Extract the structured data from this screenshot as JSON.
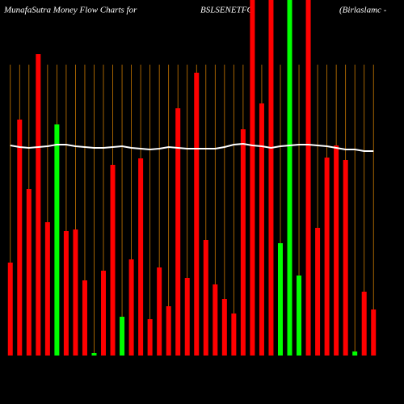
{
  "chart_data": {
    "type": "bar",
    "title": "MunafaSutra  Money Flow  Charts for",
    "subtitle": "BSLSENETFG",
    "annotation": "(Birlaslamc -",
    "categories": [
      null,
      null,
      null,
      null,
      null,
      null,
      null,
      null,
      null,
      null,
      null,
      null,
      null,
      null,
      null,
      null,
      null,
      null,
      null,
      null,
      null,
      null,
      null,
      null,
      null,
      null,
      null,
      null,
      null,
      null,
      null,
      null,
      null,
      null,
      null,
      null,
      null,
      null,
      null,
      null
    ],
    "values": [
      115,
      292,
      206,
      373,
      165,
      286,
      154,
      156,
      93,
      3,
      105,
      236,
      48,
      119,
      244,
      45,
      109,
      61,
      306,
      96,
      350,
      143,
      88,
      70,
      52,
      280,
      440,
      312,
      440,
      139,
      440,
      99,
      440,
      158,
      245,
      260,
      242,
      5,
      79,
      57
    ],
    "colors": [
      "#ff0000",
      "#ff0000",
      "#ff0000",
      "#ff0000",
      "#ff0000",
      "#00ff00",
      "#ff0000",
      "#ff0000",
      "#ff0000",
      "#00ff00",
      "#ff0000",
      "#ff0000",
      "#00ff00",
      "#ff0000",
      "#ff0000",
      "#ff0000",
      "#ff0000",
      "#ff0000",
      "#ff0000",
      "#ff0000",
      "#ff0000",
      "#ff0000",
      "#ff0000",
      "#ff0000",
      "#ff0000",
      "#ff0000",
      "#ff0000",
      "#ff0000",
      "#ff0000",
      "#00ff00",
      "#00ff00",
      "#00ff00",
      "#ff0000",
      "#ff0000",
      "#ff0000",
      "#ff0000",
      "#ff0000",
      "#00ff00",
      "#ff0000",
      "#ff0000"
    ],
    "line": {
      "color": "#ffffff",
      "values": [
        260,
        258,
        257,
        258,
        259,
        261,
        261,
        259,
        258,
        257,
        257,
        258,
        259,
        257,
        256,
        255,
        256,
        258,
        257,
        256,
        256,
        256,
        256,
        258,
        261,
        262,
        260,
        259,
        257,
        259,
        260,
        261,
        261,
        260,
        259,
        257,
        255,
        255,
        253,
        253
      ]
    },
    "ylim": [
      0,
      440
    ],
    "grid": true,
    "grid_color": "#cc7a00"
  }
}
